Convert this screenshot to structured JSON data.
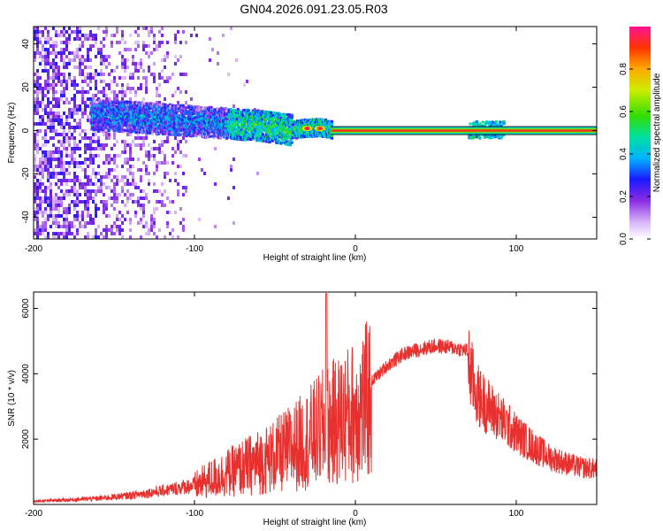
{
  "title": "GN04.2026.091.23.05.R03",
  "spectrogram": {
    "type": "heatmap",
    "xlabel": "Height of straight line (km)",
    "ylabel": "Frequency (Hz)",
    "xlim": [
      -200,
      150
    ],
    "ylim": [
      -50,
      48
    ],
    "x_ticks": [
      "-200",
      "-100",
      "0",
      "100"
    ],
    "y_ticks": [
      "-40",
      "-20",
      "0",
      "20",
      "40"
    ],
    "x_tick_values": [
      -200,
      -100,
      0,
      100
    ],
    "y_tick_values": [
      -40,
      -20,
      0,
      20,
      40
    ],
    "tone_frequency": 0,
    "tone_start_km": -15,
    "noise_region_km": [
      -200,
      -105
    ],
    "centerline": [
      {
        "x": -160,
        "y": 7
      },
      {
        "x": -140,
        "y": 6
      },
      {
        "x": -120,
        "y": 5
      },
      {
        "x": -100,
        "y": 4
      },
      {
        "x": -80,
        "y": 3
      },
      {
        "x": -60,
        "y": 2
      },
      {
        "x": -40,
        "y": 0
      },
      {
        "x": -30,
        "y": 1
      },
      {
        "x": -20,
        "y": 1
      },
      {
        "x": -15,
        "y": 0
      },
      {
        "x": 150,
        "y": 0
      }
    ]
  },
  "colorbar": {
    "label": "Normalized spectral amplitude",
    "ticks": [
      "0.0",
      "0.2",
      "0.4",
      "0.6",
      "0.8"
    ],
    "tick_values": [
      0.0,
      0.2,
      0.4,
      0.6,
      0.8
    ],
    "range": [
      0,
      1
    ]
  },
  "snr": {
    "type": "line",
    "color": "#e8312e",
    "xlabel": "Height of straight line (km)",
    "ylabel": "SNR (10 * v/v)",
    "xlim": [
      -200,
      150
    ],
    "ylim": [
      0,
      6500
    ],
    "x_ticks": [
      "-200",
      "-100",
      "0",
      "100"
    ],
    "y_ticks": [
      "2000",
      "4000",
      "6000"
    ],
    "x_tick_values": [
      -200,
      -100,
      0,
      100
    ],
    "y_tick_values": [
      2000,
      4000,
      6000
    ],
    "envelope": [
      {
        "x": -200,
        "y": 100
      },
      {
        "x": -180,
        "y": 150
      },
      {
        "x": -160,
        "y": 200
      },
      {
        "x": -140,
        "y": 300
      },
      {
        "x": -120,
        "y": 450
      },
      {
        "x": -100,
        "y": 650
      },
      {
        "x": -90,
        "y": 900
      },
      {
        "x": -80,
        "y": 1100
      },
      {
        "x": -70,
        "y": 1300
      },
      {
        "x": -60,
        "y": 1500
      },
      {
        "x": -50,
        "y": 1700
      },
      {
        "x": -40,
        "y": 2000
      },
      {
        "x": -30,
        "y": 2300
      },
      {
        "x": -20,
        "y": 2700
      },
      {
        "x": -10,
        "y": 3000
      },
      {
        "x": 0,
        "y": 3300
      },
      {
        "x": 10,
        "y": 3800
      },
      {
        "x": 20,
        "y": 4300
      },
      {
        "x": 30,
        "y": 4650
      },
      {
        "x": 40,
        "y": 4800
      },
      {
        "x": 50,
        "y": 4900
      },
      {
        "x": 60,
        "y": 4850
      },
      {
        "x": 70,
        "y": 4750
      },
      {
        "x": 72,
        "y": 4200
      },
      {
        "x": 75,
        "y": 3600
      },
      {
        "x": 80,
        "y": 3300
      },
      {
        "x": 90,
        "y": 2800
      },
      {
        "x": 100,
        "y": 2300
      },
      {
        "x": 110,
        "y": 1900
      },
      {
        "x": 120,
        "y": 1550
      },
      {
        "x": 130,
        "y": 1350
      },
      {
        "x": 140,
        "y": 1200
      },
      {
        "x": 150,
        "y": 1150
      }
    ],
    "peak": {
      "x": -18,
      "y": 6450
    }
  }
}
